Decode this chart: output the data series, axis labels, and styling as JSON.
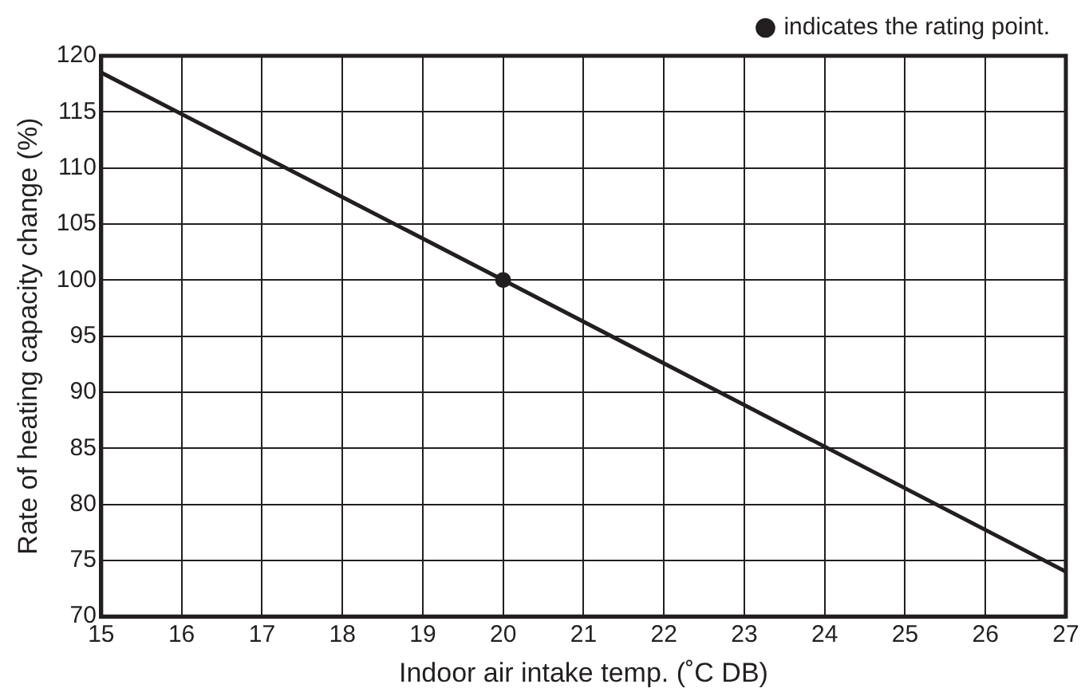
{
  "chart_data": {
    "type": "line",
    "xlabel": "Indoor air intake temp. (˚C DB)",
    "ylabel": "Rate of heating capacity change (%)",
    "xlim": [
      15,
      27
    ],
    "xticks": [
      15,
      16,
      17,
      18,
      19,
      20,
      21,
      22,
      23,
      24,
      25,
      26,
      27
    ],
    "ylim": [
      70,
      120
    ],
    "yticks": [
      70,
      75,
      80,
      85,
      90,
      95,
      100,
      105,
      110,
      115,
      120
    ],
    "series": [
      {
        "color": "#231f20",
        "x": [
          15,
          20,
          27
        ],
        "values": [
          118.5,
          100,
          74
        ]
      },
      {
        "type": "scatter",
        "name": "indicates the rating point.",
        "color": "#231f20",
        "x": [
          20
        ],
        "values": [
          100
        ],
        "marker": "circle"
      }
    ],
    "grid": true,
    "legend": "top right"
  }
}
